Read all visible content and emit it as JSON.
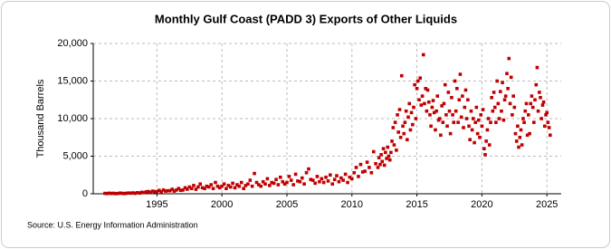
{
  "chart_data": {
    "type": "scatter",
    "title": "Monthly Gulf Coast (PADD 3) Exports of Other Liquids",
    "y_label": "Thousand Barrels",
    "source": "Source: U.S. Energy Information Administration",
    "color": "#c00000",
    "grid": true,
    "xlim": [
      1990.1,
      2026.1
    ],
    "xticks": [
      1995,
      2000,
      2005,
      2010,
      2015,
      2020,
      2025
    ],
    "ylim": [
      0,
      20000
    ],
    "yticks": [
      0,
      {
        "value": 5000,
        "label": "5,000"
      },
      {
        "value": 10000,
        "label": "10,000"
      },
      {
        "value": 15000,
        "label": "15,000"
      },
      {
        "value": 20000,
        "label": "20,000"
      }
    ],
    "x": [
      1991.0,
      1991.17,
      1991.33,
      1991.5,
      1991.67,
      1991.83,
      1992.0,
      1992.17,
      1992.33,
      1992.5,
      1992.67,
      1992.83,
      1993.0,
      1993.17,
      1993.33,
      1993.5,
      1993.67,
      1993.83,
      1994.0,
      1994.17,
      1994.33,
      1994.5,
      1994.67,
      1994.83,
      1995.0,
      1995.17,
      1995.33,
      1995.5,
      1995.67,
      1995.83,
      1996.0,
      1996.17,
      1996.33,
      1996.5,
      1996.67,
      1996.83,
      1997.0,
      1997.17,
      1997.33,
      1997.5,
      1997.67,
      1997.83,
      1998.0,
      1998.17,
      1998.33,
      1998.5,
      1998.67,
      1998.83,
      1999.0,
      1999.17,
      1999.33,
      1999.5,
      1999.67,
      1999.83,
      2000.0,
      2000.17,
      2000.33,
      2000.5,
      2000.67,
      2000.83,
      2001.0,
      2001.17,
      2001.33,
      2001.5,
      2001.67,
      2001.83,
      2002.0,
      2002.17,
      2002.33,
      2002.5,
      2002.67,
      2002.83,
      2003.0,
      2003.17,
      2003.33,
      2003.5,
      2003.67,
      2003.83,
      2004.0,
      2004.17,
      2004.33,
      2004.5,
      2004.67,
      2004.83,
      2005.0,
      2005.17,
      2005.33,
      2005.5,
      2005.67,
      2005.83,
      2006.0,
      2006.17,
      2006.33,
      2006.5,
      2006.67,
      2006.83,
      2007.0,
      2007.17,
      2007.33,
      2007.5,
      2007.67,
      2007.83,
      2008.0,
      2008.17,
      2008.33,
      2008.5,
      2008.67,
      2008.83,
      2009.0,
      2009.17,
      2009.33,
      2009.5,
      2009.67,
      2009.83,
      2010.0,
      2010.17,
      2010.33,
      2010.5,
      2010.67,
      2010.83,
      2011.0,
      2011.17,
      2011.33,
      2011.5,
      2011.67,
      2011.83,
      2012.0,
      2012.08,
      2012.17,
      2012.25,
      2012.33,
      2012.42,
      2012.5,
      2012.58,
      2012.67,
      2012.75,
      2012.83,
      2012.92,
      2013.0,
      2013.08,
      2013.17,
      2013.25,
      2013.33,
      2013.42,
      2013.5,
      2013.58,
      2013.67,
      2013.75,
      2013.83,
      2013.92,
      2014.0,
      2014.08,
      2014.17,
      2014.25,
      2014.33,
      2014.42,
      2014.5,
      2014.58,
      2014.67,
      2014.75,
      2014.83,
      2014.92,
      2015.0,
      2015.08,
      2015.17,
      2015.25,
      2015.33,
      2015.42,
      2015.5,
      2015.58,
      2015.67,
      2015.75,
      2015.83,
      2015.92,
      2016.0,
      2016.08,
      2016.17,
      2016.25,
      2016.33,
      2016.42,
      2016.5,
      2016.58,
      2016.67,
      2016.75,
      2016.83,
      2016.92,
      2017.0,
      2017.08,
      2017.17,
      2017.25,
      2017.33,
      2017.42,
      2017.5,
      2017.58,
      2017.67,
      2017.75,
      2017.83,
      2017.92,
      2018.0,
      2018.08,
      2018.17,
      2018.25,
      2018.33,
      2018.42,
      2018.5,
      2018.58,
      2018.67,
      2018.75,
      2018.83,
      2018.92,
      2019.0,
      2019.08,
      2019.17,
      2019.25,
      2019.33,
      2019.42,
      2019.5,
      2019.58,
      2019.67,
      2019.75,
      2019.83,
      2019.92,
      2020.0,
      2020.08,
      2020.17,
      2020.25,
      2020.33,
      2020.42,
      2020.5,
      2020.58,
      2020.67,
      2020.75,
      2020.83,
      2020.92,
      2021.0,
      2021.08,
      2021.17,
      2021.25,
      2021.33,
      2021.42,
      2021.5,
      2021.58,
      2021.67,
      2021.75,
      2021.83,
      2021.92,
      2022.0,
      2022.08,
      2022.17,
      2022.25,
      2022.33,
      2022.42,
      2022.5,
      2022.58,
      2022.67,
      2022.75,
      2022.83,
      2022.92,
      2023.0,
      2023.08,
      2023.17,
      2023.25,
      2023.33,
      2023.42,
      2023.5,
      2023.58,
      2023.67,
      2023.75,
      2023.83,
      2023.92,
      2024.0,
      2024.08,
      2024.17,
      2024.25,
      2024.33,
      2024.42,
      2024.5,
      2024.58,
      2024.67,
      2024.75,
      2024.83,
      2024.92,
      2025.0,
      2025.08,
      2025.17,
      2025.25
    ],
    "values": [
      50,
      30,
      80,
      40,
      60,
      20,
      40,
      90,
      60,
      30,
      70,
      100,
      80,
      120,
      60,
      150,
      90,
      200,
      150,
      250,
      300,
      200,
      350,
      280,
      300,
      450,
      250,
      500,
      350,
      400,
      400,
      600,
      350,
      500,
      700,
      450,
      500,
      800,
      600,
      900,
      700,
      1100,
      600,
      900,
      1300,
      800,
      700,
      1000,
      900,
      1200,
      700,
      1500,
      1000,
      800,
      1000,
      1300,
      700,
      1100,
      900,
      1400,
      800,
      1200,
      1000,
      1500,
      700,
      1100,
      1300,
      1800,
      1000,
      2700,
      1500,
      1200,
      1000,
      1600,
      1300,
      2000,
      1100,
      1500,
      1400,
      1900,
      1200,
      2200,
      1600,
      1300,
      1500,
      2300,
      1800,
      1200,
      2600,
      1700,
      1600,
      2100,
      1300,
      2800,
      3300,
      1900,
      1800,
      1400,
      2300,
      1600,
      2000,
      1500,
      2200,
      1700,
      2500,
      1300,
      1900,
      2400,
      1600,
      2100,
      1800,
      2600,
      1500,
      2200,
      2000,
      2800,
      3500,
      2300,
      3900,
      2900,
      3000,
      4200,
      3500,
      2800,
      5600,
      4000,
      3500,
      4800,
      3900,
      5200,
      4300,
      6000,
      3800,
      5500,
      4700,
      6200,
      5000,
      4500,
      5500,
      7000,
      8800,
      6500,
      9500,
      5800,
      10500,
      8200,
      11200,
      7500,
      15700,
      9000,
      8000,
      9500,
      11000,
      7200,
      10200,
      12000,
      8500,
      10800,
      9200,
      11500,
      14500,
      10000,
      14000,
      15000,
      12500,
      15400,
      11800,
      13000,
      18500,
      12000,
      14000,
      11000,
      13800,
      12200,
      10500,
      9000,
      11500,
      12400,
      10800,
      8500,
      11000,
      13000,
      9800,
      10000,
      7800,
      11700,
      9500,
      12000,
      14500,
      10500,
      9000,
      13500,
      11000,
      8000,
      12800,
      10500,
      9500,
      15000,
      11000,
      14000,
      9500,
      12500,
      15900,
      10200,
      13000,
      8800,
      11500,
      13800,
      10000,
      12500,
      9000,
      7200,
      11000,
      8500,
      10000,
      6800,
      9500,
      11500,
      8000,
      9800,
      7500,
      10500,
      9000,
      11200,
      6000,
      5200,
      7000,
      8500,
      10000,
      6500,
      9500,
      12800,
      11000,
      13500,
      11500,
      9500,
      15000,
      12000,
      10000,
      13600,
      11000,
      14800,
      9800,
      12500,
      13000,
      16000,
      14000,
      18000,
      12000,
      15500,
      10500,
      13000,
      11500,
      8000,
      7000,
      9000,
      6200,
      7500,
      8500,
      6500,
      10000,
      9500,
      11000,
      12000,
      7800,
      10500,
      8000,
      12000,
      13000,
      11500,
      9500,
      12500,
      14500,
      16800,
      11000,
      13500,
      12800,
      10000,
      11800,
      12200,
      9000,
      10500,
      10800,
      9500,
      8800,
      7800
    ]
  }
}
